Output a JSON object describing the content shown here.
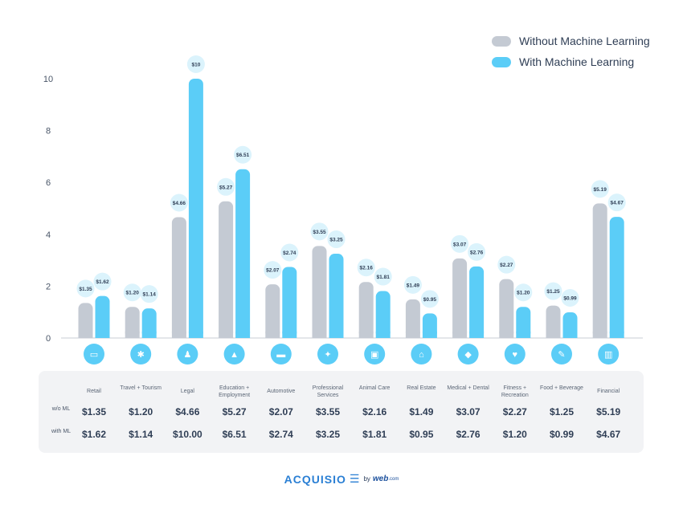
{
  "legend": {
    "without_label": "Without Machine Learning",
    "with_label": "With Machine Learning"
  },
  "colors": {
    "without": "#c4cad3",
    "with": "#5bcdf7",
    "icon_circle": "#5bcdf7",
    "bubble": "#dbf3fc"
  },
  "chart_data": {
    "type": "bar",
    "categories": [
      "Retail",
      "Travel + Tourism",
      "Legal",
      "Education + Employment",
      "Automotive",
      "Professional Services",
      "Animal Care",
      "Real Estate",
      "Medical + Dental",
      "Fitness + Recreation",
      "Food + Beverage",
      "Financial"
    ],
    "series": [
      {
        "name": "Without Machine Learning",
        "values": [
          1.35,
          1.2,
          4.66,
          5.27,
          2.07,
          3.55,
          2.16,
          1.49,
          3.07,
          2.27,
          1.25,
          5.19
        ]
      },
      {
        "name": "With Machine Learning",
        "values": [
          1.62,
          1.14,
          10.0,
          6.51,
          2.74,
          3.25,
          1.81,
          0.95,
          2.76,
          1.2,
          0.99,
          4.67
        ]
      }
    ],
    "bar_labels_without": [
      "$1.35",
      "$1.20",
      "$4.66",
      "$5.27",
      "$2.07",
      "$3.55",
      "$2.16",
      "$1.49",
      "$3.07",
      "$2.27",
      "$1.25",
      "$5.19"
    ],
    "bar_labels_with": [
      "$1.62",
      "$1.14",
      "$10",
      "$6.51",
      "$2.74",
      "$3.25",
      "$1.81",
      "$0.95",
      "$2.76",
      "$1.20",
      "$0.99",
      "$4.67"
    ],
    "yticks": [
      "0",
      "2",
      "4",
      "6",
      "8",
      "10"
    ],
    "ylim": [
      0,
      10
    ],
    "grid": false,
    "legend_position": "top-right"
  },
  "table": {
    "row_label_without": "w/o ML",
    "row_label_with": "with ML",
    "categories": [
      "Retail",
      "Travel + Tourism",
      "Legal",
      "Education + Employment",
      "Automotive",
      "Professional Services",
      "Animal Care",
      "Real Estate",
      "Medical + Dental",
      "Fitness + Recreation",
      "Food + Beverage",
      "Financial"
    ],
    "without": [
      "$1.35",
      "$1.20",
      "$4.66",
      "$5.27",
      "$2.07",
      "$3.55",
      "$2.16",
      "$1.49",
      "$3.07",
      "$2.27",
      "$1.25",
      "$5.19"
    ],
    "with": [
      "$1.62",
      "$1.14",
      "$10.00",
      "$6.51",
      "$2.74",
      "$3.25",
      "$1.81",
      "$0.95",
      "$2.76",
      "$1.20",
      "$0.99",
      "$4.67"
    ]
  },
  "icons": [
    "wallet-icon",
    "palm-tree-icon",
    "people-icon",
    "graduation-cap-icon",
    "car-icon",
    "lightbulb-icon",
    "pet-icon",
    "house-icon",
    "tooth-icon",
    "heart-icon",
    "utensils-icon",
    "chart-icon"
  ],
  "footer": {
    "brand": "ACQUISIO",
    "by": "by",
    "byname": "web",
    "bydomain": ".com"
  }
}
